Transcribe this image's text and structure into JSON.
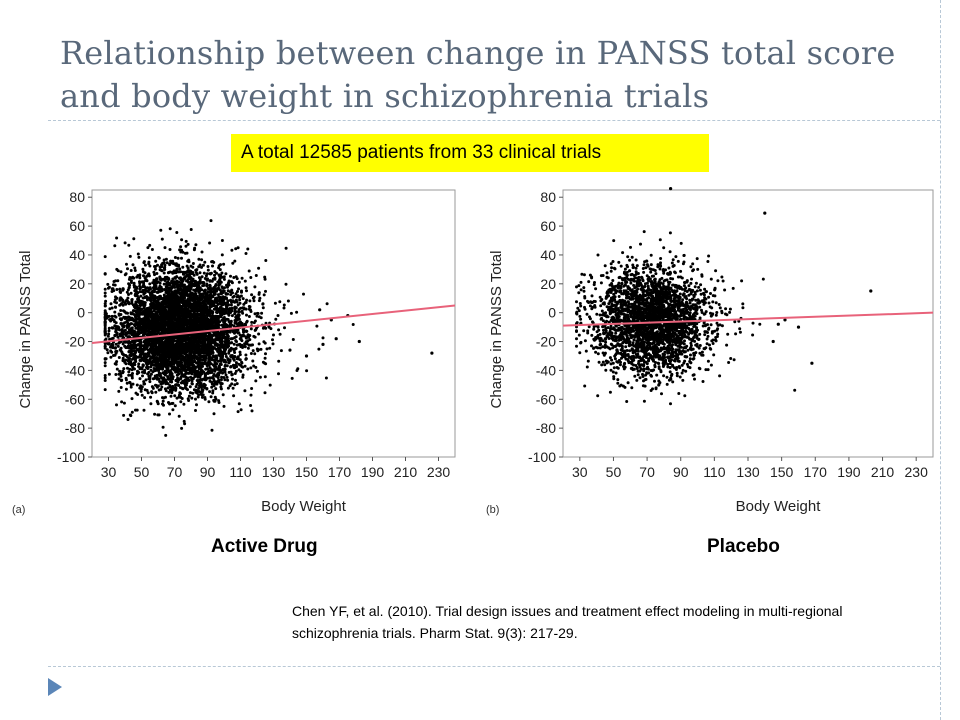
{
  "slide": {
    "title": "Relationship between change in PANSS total score and body weight in schizophrenia trials",
    "banner": "A total 12585 patients from 33 clinical trials",
    "captions": {
      "left": "Active Drug",
      "right": "Placebo"
    },
    "citation": "Chen YF, et al. (2010). Trial design issues and treatment effect modeling in multi-regional schizophrenia trials. Pharm Stat. 9(3): 217-29.",
    "colors": {
      "title": "#59687a",
      "banner": "#ffff00",
      "fit_line": "#e8627a",
      "points": "#000000",
      "bullet": "#5b86b8"
    }
  },
  "chart_data": [
    {
      "type": "scatter",
      "panel_label": "(a)",
      "xlabel": "Body Weight",
      "ylabel": "Change in PANSS Total",
      "xlim": [
        20,
        240
      ],
      "ylim": [
        -100,
        85
      ],
      "xticks": [
        30,
        50,
        70,
        90,
        110,
        130,
        150,
        170,
        190,
        210,
        230
      ],
      "yticks": [
        -100,
        -80,
        -60,
        -40,
        -20,
        0,
        20,
        40,
        60,
        80
      ],
      "cluster": {
        "x_center": 72,
        "x_spread": 17,
        "y_center": -12,
        "y_spread": 21,
        "n": 5500
      },
      "outliers": [
        [
          182,
          -20
        ],
        [
          226,
          -28
        ],
        [
          168,
          -18
        ],
        [
          165,
          -5
        ],
        [
          160,
          -22
        ],
        [
          158,
          2
        ],
        [
          150,
          -30
        ],
        [
          175,
          -2
        ]
      ],
      "fit_line": {
        "x": [
          20,
          240
        ],
        "y": [
          -21,
          5
        ]
      }
    },
    {
      "type": "scatter",
      "panel_label": "(b)",
      "xlabel": "Body Weight",
      "ylabel": "Change in PANSS Total",
      "xlim": [
        20,
        240
      ],
      "ylim": [
        -100,
        85
      ],
      "xticks": [
        30,
        50,
        70,
        90,
        110,
        130,
        150,
        170,
        190,
        210,
        230
      ],
      "yticks": [
        -100,
        -80,
        -60,
        -40,
        -20,
        0,
        20,
        40,
        60,
        80
      ],
      "cluster": {
        "x_center": 72,
        "x_spread": 15,
        "y_center": -6,
        "y_spread": 18,
        "n": 2800
      },
      "outliers": [
        [
          203,
          15
        ],
        [
          168,
          -35
        ],
        [
          152,
          -5
        ],
        [
          148,
          -8
        ],
        [
          84,
          86
        ],
        [
          140,
          69
        ],
        [
          160,
          -10
        ],
        [
          145,
          -20
        ]
      ],
      "fit_line": {
        "x": [
          20,
          240
        ],
        "y": [
          -9,
          0
        ]
      }
    }
  ]
}
